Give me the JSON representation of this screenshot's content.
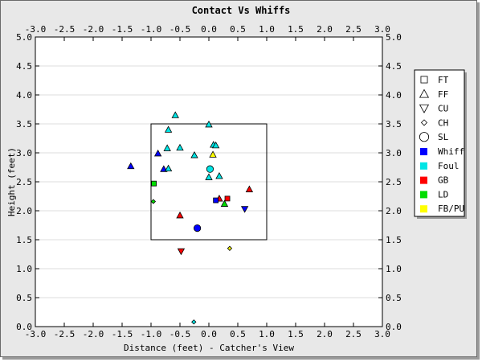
{
  "chart_data": {
    "type": "scatter",
    "title": "Contact Vs Whiffs",
    "xlabel": "Distance (feet) - Catcher's View",
    "ylabel": "Height (feet)",
    "xlim": [
      -3.0,
      3.0
    ],
    "ylim": [
      0.0,
      5.0
    ],
    "x_ticks": [
      "-3.0",
      "-2.5",
      "-2.0",
      "-1.5",
      "-1.0",
      "-0.5",
      "0.0",
      "0.5",
      "1.0",
      "1.5",
      "2.0",
      "2.5",
      "3.0"
    ],
    "y_ticks": [
      "0.0",
      "0.5",
      "1.0",
      "1.5",
      "2.0",
      "2.5",
      "3.0",
      "3.5",
      "4.0",
      "4.5",
      "5.0"
    ],
    "grid": "horizontal",
    "legend_position": "right",
    "strike_zone": {
      "x": [
        -1.0,
        1.0
      ],
      "y": [
        1.5,
        3.5
      ]
    },
    "shape_legend": [
      {
        "label": "FT",
        "shape": "square"
      },
      {
        "label": "FF",
        "shape": "triangle-up"
      },
      {
        "label": "CU",
        "shape": "triangle-down"
      },
      {
        "label": "CH",
        "shape": "diamond"
      },
      {
        "label": "SL",
        "shape": "circle"
      }
    ],
    "color_legend": [
      {
        "label": "Whiff",
        "color": "#0000ff"
      },
      {
        "label": "Foul",
        "color": "#00e5e5"
      },
      {
        "label": "GB",
        "color": "#ff0000"
      },
      {
        "label": "LD",
        "color": "#00dd00"
      },
      {
        "label": "FB/PU",
        "color": "#ffff00"
      }
    ],
    "points": [
      {
        "x": -1.35,
        "y": 2.77,
        "shape": "triangle-up",
        "result": "Whiff"
      },
      {
        "x": -0.88,
        "y": 2.99,
        "shape": "triangle-up",
        "result": "Whiff"
      },
      {
        "x": -0.78,
        "y": 2.72,
        "shape": "triangle-up",
        "result": "Whiff"
      },
      {
        "x": -0.58,
        "y": 3.65,
        "shape": "triangle-up",
        "result": "Foul"
      },
      {
        "x": -0.7,
        "y": 3.4,
        "shape": "triangle-up",
        "result": "Foul"
      },
      {
        "x": -0.72,
        "y": 3.08,
        "shape": "triangle-up",
        "result": "Foul"
      },
      {
        "x": -0.7,
        "y": 2.73,
        "shape": "triangle-up",
        "result": "Foul"
      },
      {
        "x": -0.5,
        "y": 3.09,
        "shape": "triangle-up",
        "result": "Foul"
      },
      {
        "x": -0.25,
        "y": 2.96,
        "shape": "triangle-up",
        "result": "Foul"
      },
      {
        "x": 0.0,
        "y": 3.49,
        "shape": "triangle-up",
        "result": "Foul"
      },
      {
        "x": 0.08,
        "y": 3.14,
        "shape": "triangle-up",
        "result": "Foul"
      },
      {
        "x": 0.12,
        "y": 3.13,
        "shape": "triangle-up",
        "result": "Foul"
      },
      {
        "x": 0.0,
        "y": 2.58,
        "shape": "triangle-up",
        "result": "Foul"
      },
      {
        "x": 0.18,
        "y": 2.6,
        "shape": "triangle-up",
        "result": "Foul"
      },
      {
        "x": 0.07,
        "y": 2.97,
        "shape": "triangle-up",
        "result": "FB/PU"
      },
      {
        "x": 0.18,
        "y": 2.21,
        "shape": "triangle-up",
        "result": "GB"
      },
      {
        "x": 0.7,
        "y": 2.37,
        "shape": "triangle-up",
        "result": "GB"
      },
      {
        "x": -0.5,
        "y": 1.92,
        "shape": "triangle-up",
        "result": "GB"
      },
      {
        "x": 0.27,
        "y": 2.12,
        "shape": "triangle-up",
        "result": "LD"
      },
      {
        "x": 0.02,
        "y": 2.72,
        "shape": "circle",
        "result": "Foul"
      },
      {
        "x": -0.2,
        "y": 1.7,
        "shape": "circle",
        "result": "Whiff"
      },
      {
        "x": 0.12,
        "y": 2.18,
        "shape": "square",
        "result": "Whiff"
      },
      {
        "x": 0.32,
        "y": 2.21,
        "shape": "square",
        "result": "GB"
      },
      {
        "x": -0.95,
        "y": 2.47,
        "shape": "square",
        "result": "LD"
      },
      {
        "x": 0.62,
        "y": 2.03,
        "shape": "triangle-down",
        "result": "Whiff"
      },
      {
        "x": -0.48,
        "y": 1.3,
        "shape": "triangle-down",
        "result": "GB"
      },
      {
        "x": -0.96,
        "y": 2.16,
        "shape": "diamond",
        "result": "LD"
      },
      {
        "x": 0.36,
        "y": 1.35,
        "shape": "diamond",
        "result": "FB/PU"
      },
      {
        "x": -0.26,
        "y": 0.08,
        "shape": "diamond",
        "result": "Foul"
      }
    ]
  }
}
